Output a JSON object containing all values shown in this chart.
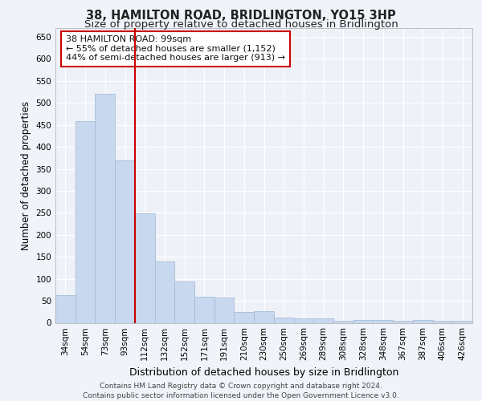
{
  "title": "38, HAMILTON ROAD, BRIDLINGTON, YO15 3HP",
  "subtitle": "Size of property relative to detached houses in Bridlington",
  "xlabel": "Distribution of detached houses by size in Bridlington",
  "ylabel": "Number of detached properties",
  "categories": [
    "34sqm",
    "54sqm",
    "73sqm",
    "93sqm",
    "112sqm",
    "132sqm",
    "152sqm",
    "171sqm",
    "191sqm",
    "210sqm",
    "230sqm",
    "250sqm",
    "269sqm",
    "289sqm",
    "308sqm",
    "328sqm",
    "348sqm",
    "367sqm",
    "387sqm",
    "406sqm",
    "426sqm"
  ],
  "values": [
    62,
    458,
    520,
    370,
    248,
    140,
    93,
    60,
    57,
    25,
    27,
    12,
    10,
    10,
    5,
    7,
    7,
    5,
    7,
    5,
    5
  ],
  "bar_color": "#c8d8ee",
  "bar_edge_color": "#a8bcd8",
  "vline_x_pos": 3.5,
  "vline_color": "#cc0000",
  "annotation_text": "38 HAMILTON ROAD: 99sqm\n← 55% of detached houses are smaller (1,152)\n44% of semi-detached houses are larger (913) →",
  "annotation_box_color": "#ffffff",
  "annotation_box_edge": "#cc0000",
  "ylim": [
    0,
    670
  ],
  "yticks": [
    0,
    50,
    100,
    150,
    200,
    250,
    300,
    350,
    400,
    450,
    500,
    550,
    600,
    650
  ],
  "fig_background": "#f0f4fa",
  "plot_bg_color": "#eef2f8",
  "grid_color": "#ffffff",
  "footer_text": "Contains HM Land Registry data © Crown copyright and database right 2024.\nContains public sector information licensed under the Open Government Licence v3.0.",
  "title_fontsize": 10.5,
  "subtitle_fontsize": 9.5,
  "xlabel_fontsize": 9,
  "ylabel_fontsize": 8.5,
  "tick_fontsize": 7.5,
  "annotation_fontsize": 8,
  "footer_fontsize": 6.5
}
